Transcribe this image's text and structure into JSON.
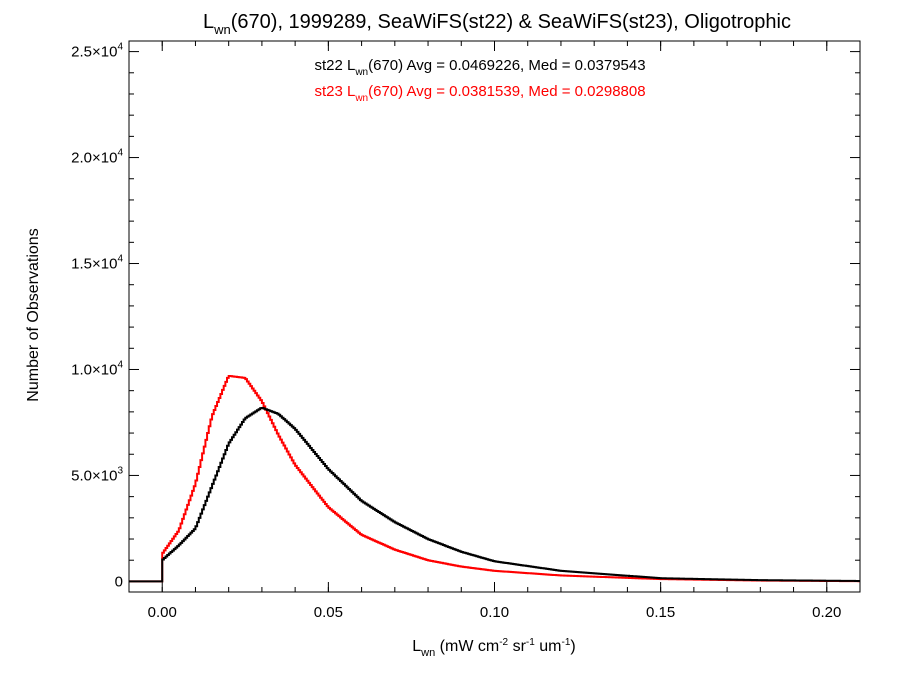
{
  "chart_data": {
    "type": "line",
    "title": {
      "base": "L",
      "sub": "wn",
      "rest": "(670), 1999289, SeaWiFS(st22) & SeaWiFS(st23), Oligotrophic"
    },
    "xlabel": {
      "base": "L",
      "sub": "wn",
      "rest": " (mW cm",
      "sup1": "-2",
      "mid1": " sr",
      "sup2": "-1",
      "mid2": " um",
      "sup3": "-1",
      "end": ")"
    },
    "ylabel": "Number of Observations",
    "xlim": [
      -0.01,
      0.21
    ],
    "ylim": [
      -500,
      25500
    ],
    "xticks": [
      {
        "value": 0.0,
        "label": "0.00"
      },
      {
        "value": 0.05,
        "label": "0.05"
      },
      {
        "value": 0.1,
        "label": "0.10"
      },
      {
        "value": 0.15,
        "label": "0.15"
      },
      {
        "value": 0.2,
        "label": "0.20"
      }
    ],
    "yticks": [
      {
        "value": 0,
        "mantissa": "0",
        "exp": ""
      },
      {
        "value": 5000,
        "mantissa": "5.0×10",
        "exp": "3"
      },
      {
        "value": 10000,
        "mantissa": "1.0×10",
        "exp": "4"
      },
      {
        "value": 15000,
        "mantissa": "1.5×10",
        "exp": "4"
      },
      {
        "value": 20000,
        "mantissa": "2.0×10",
        "exp": "4"
      },
      {
        "value": 25000,
        "mantissa": "2.5×10",
        "exp": "4"
      }
    ],
    "grid": false,
    "series": [
      {
        "color": "#000000",
        "stats": {
          "prefix": "st22 L",
          "sub": "wn",
          "rest": "(670) Avg = 0.0469226, Med = 0.0379543"
        },
        "x": [
          -0.01,
          0.0,
          0.005,
          0.01,
          0.015,
          0.02,
          0.025,
          0.03,
          0.035,
          0.04,
          0.05,
          0.06,
          0.07,
          0.08,
          0.09,
          0.1,
          0.12,
          0.15,
          0.18,
          0.21
        ],
        "values": [
          0,
          1000,
          1700,
          2500,
          4500,
          6500,
          7700,
          8200,
          7900,
          7200,
          5300,
          3800,
          2800,
          2000,
          1400,
          950,
          500,
          150,
          60,
          20
        ]
      },
      {
        "color": "#ff0000",
        "stats": {
          "prefix": "st23 L",
          "sub": "wn",
          "rest": "(670) Avg = 0.0381539, Med = 0.0298808"
        },
        "x": [
          -0.01,
          0.0,
          0.005,
          0.01,
          0.015,
          0.02,
          0.025,
          0.03,
          0.035,
          0.04,
          0.05,
          0.06,
          0.07,
          0.08,
          0.09,
          0.1,
          0.12,
          0.15,
          0.18,
          0.21
        ],
        "values": [
          0,
          1300,
          2400,
          4600,
          7800,
          9700,
          9600,
          8500,
          6900,
          5500,
          3500,
          2200,
          1500,
          1000,
          700,
          500,
          280,
          110,
          40,
          10
        ]
      }
    ]
  }
}
